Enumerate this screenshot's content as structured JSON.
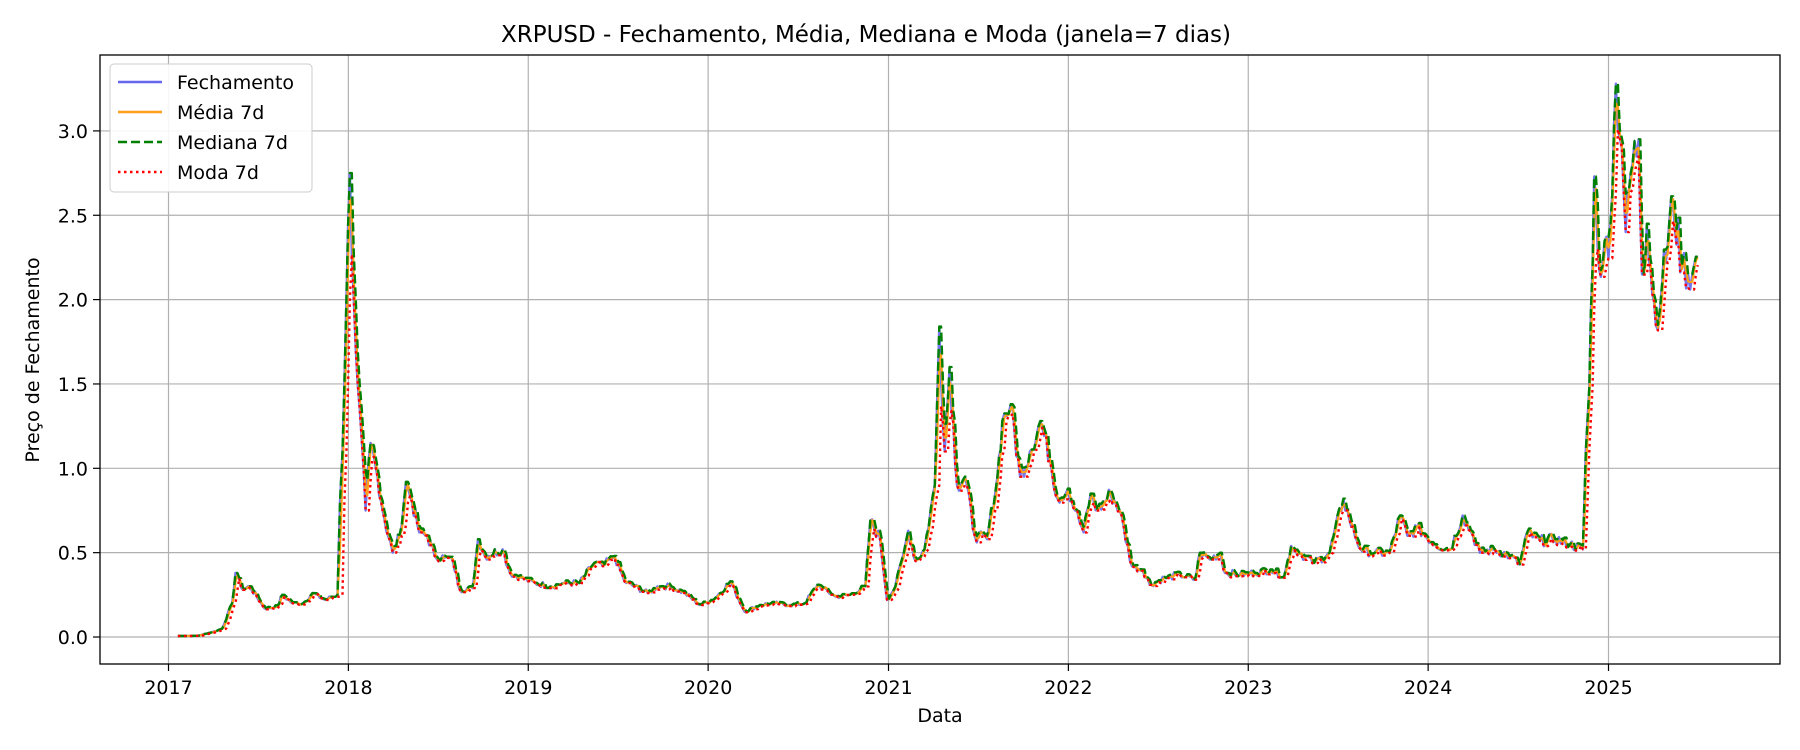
{
  "chart_data": {
    "type": "line",
    "title": "XRPUSD - Fechamento, Média, Mediana e Moda (janela=7 dias)",
    "xlabel": "Data",
    "ylabel": "Preço de Fechamento",
    "xlim": [
      "2016-08-15",
      "2025-12-15"
    ],
    "ylim": [
      -0.16,
      3.45
    ],
    "x_ticks": [
      "2017-01-01",
      "2018-01-01",
      "2019-01-01",
      "2020-01-01",
      "2021-01-01",
      "2022-01-01",
      "2023-01-01",
      "2024-01-01",
      "2025-01-01"
    ],
    "x_tick_labels": [
      "2017",
      "2018",
      "2019",
      "2020",
      "2021",
      "2022",
      "2023",
      "2024",
      "2025"
    ],
    "y_ticks": [
      0.0,
      0.5,
      1.0,
      1.5,
      2.0,
      2.5,
      3.0
    ],
    "y_tick_labels": [
      "0.0",
      "0.5",
      "1.0",
      "1.5",
      "2.0",
      "2.5",
      "3.0"
    ],
    "grid": true,
    "legend_position": "top-left",
    "series": [
      {
        "name": "Fechamento",
        "color": "#6666ee",
        "style": "solid"
      },
      {
        "name": "Média 7d",
        "color": "#ff9f1a",
        "style": "solid"
      },
      {
        "name": "Mediana 7d",
        "color": "#008000",
        "style": "dashed"
      },
      {
        "name": "Moda 7d",
        "color": "#ff0000",
        "style": "dotted"
      }
    ],
    "close_points": [
      [
        "2017-01-20",
        0.006
      ],
      [
        "2017-03-01",
        0.007
      ],
      [
        "2017-04-01",
        0.03
      ],
      [
        "2017-04-20",
        0.05
      ],
      [
        "2017-05-10",
        0.2
      ],
      [
        "2017-05-17",
        0.38
      ],
      [
        "2017-06-01",
        0.28
      ],
      [
        "2017-06-15",
        0.3
      ],
      [
        "2017-07-15",
        0.17
      ],
      [
        "2017-08-10",
        0.18
      ],
      [
        "2017-08-20",
        0.25
      ],
      [
        "2017-09-10",
        0.2
      ],
      [
        "2017-10-01",
        0.2
      ],
      [
        "2017-10-20",
        0.26
      ],
      [
        "2017-11-15",
        0.22
      ],
      [
        "2017-12-10",
        0.25
      ],
      [
        "2017-12-15",
        0.8
      ],
      [
        "2017-12-20",
        1.1
      ],
      [
        "2017-12-28",
        2.0
      ],
      [
        "2018-01-04",
        2.75
      ],
      [
        "2018-01-12",
        2.0
      ],
      [
        "2018-01-20",
        1.5
      ],
      [
        "2018-02-05",
        0.75
      ],
      [
        "2018-02-15",
        1.15
      ],
      [
        "2018-03-01",
        0.95
      ],
      [
        "2018-03-15",
        0.7
      ],
      [
        "2018-04-01",
        0.5
      ],
      [
        "2018-04-15",
        0.6
      ],
      [
        "2018-04-28",
        0.92
      ],
      [
        "2018-05-10",
        0.8
      ],
      [
        "2018-05-25",
        0.62
      ],
      [
        "2018-06-10",
        0.6
      ],
      [
        "2018-06-25",
        0.48
      ],
      [
        "2018-07-15",
        0.47
      ],
      [
        "2018-08-01",
        0.45
      ],
      [
        "2018-08-15",
        0.28
      ],
      [
        "2018-09-10",
        0.29
      ],
      [
        "2018-09-21",
        0.58
      ],
      [
        "2018-10-05",
        0.48
      ],
      [
        "2018-11-10",
        0.52
      ],
      [
        "2018-11-25",
        0.38
      ],
      [
        "2018-12-20",
        0.35
      ],
      [
        "2019-01-15",
        0.32
      ],
      [
        "2019-02-15",
        0.3
      ],
      [
        "2019-03-15",
        0.32
      ],
      [
        "2019-04-15",
        0.32
      ],
      [
        "2019-05-15",
        0.44
      ],
      [
        "2019-06-01",
        0.42
      ],
      [
        "2019-06-25",
        0.48
      ],
      [
        "2019-07-15",
        0.33
      ],
      [
        "2019-09-01",
        0.26
      ],
      [
        "2019-09-20",
        0.3
      ],
      [
        "2019-10-15",
        0.3
      ],
      [
        "2019-11-15",
        0.26
      ],
      [
        "2019-12-15",
        0.19
      ],
      [
        "2020-01-15",
        0.23
      ],
      [
        "2020-02-15",
        0.33
      ],
      [
        "2020-03-15",
        0.15
      ],
      [
        "2020-04-15",
        0.19
      ],
      [
        "2020-05-15",
        0.2
      ],
      [
        "2020-06-15",
        0.19
      ],
      [
        "2020-07-15",
        0.2
      ],
      [
        "2020-08-10",
        0.31
      ],
      [
        "2020-09-15",
        0.24
      ],
      [
        "2020-10-15",
        0.25
      ],
      [
        "2020-11-15",
        0.3
      ],
      [
        "2020-11-25",
        0.69
      ],
      [
        "2020-12-15",
        0.58
      ],
      [
        "2020-12-29",
        0.22
      ],
      [
        "2021-01-15",
        0.3
      ],
      [
        "2021-02-01",
        0.5
      ],
      [
        "2021-02-10",
        0.63
      ],
      [
        "2021-02-25",
        0.45
      ],
      [
        "2021-03-15",
        0.52
      ],
      [
        "2021-04-05",
        0.9
      ],
      [
        "2021-04-14",
        1.84
      ],
      [
        "2021-04-25",
        1.1
      ],
      [
        "2021-05-05",
        1.6
      ],
      [
        "2021-05-20",
        0.9
      ],
      [
        "2021-06-05",
        0.95
      ],
      [
        "2021-06-25",
        0.6
      ],
      [
        "2021-07-20",
        0.58
      ],
      [
        "2021-08-10",
        0.95
      ],
      [
        "2021-08-20",
        1.28
      ],
      [
        "2021-09-06",
        1.38
      ],
      [
        "2021-09-25",
        0.95
      ],
      [
        "2021-10-15",
        1.1
      ],
      [
        "2021-11-05",
        1.28
      ],
      [
        "2021-11-25",
        1.05
      ],
      [
        "2021-12-10",
        0.82
      ],
      [
        "2021-12-31",
        0.88
      ],
      [
        "2022-01-15",
        0.75
      ],
      [
        "2022-02-01",
        0.62
      ],
      [
        "2022-02-15",
        0.85
      ],
      [
        "2022-03-01",
        0.75
      ],
      [
        "2022-03-28",
        0.85
      ],
      [
        "2022-04-15",
        0.75
      ],
      [
        "2022-05-10",
        0.42
      ],
      [
        "2022-06-01",
        0.4
      ],
      [
        "2022-06-15",
        0.31
      ],
      [
        "2022-07-15",
        0.35
      ],
      [
        "2022-08-15",
        0.37
      ],
      [
        "2022-09-15",
        0.34
      ],
      [
        "2022-09-25",
        0.5
      ],
      [
        "2022-10-15",
        0.46
      ],
      [
        "2022-11-05",
        0.5
      ],
      [
        "2022-11-15",
        0.38
      ],
      [
        "2022-12-15",
        0.37
      ],
      [
        "2023-01-15",
        0.38
      ],
      [
        "2023-02-15",
        0.4
      ],
      [
        "2023-03-15",
        0.36
      ],
      [
        "2023-03-29",
        0.54
      ],
      [
        "2023-04-15",
        0.5
      ],
      [
        "2023-05-15",
        0.44
      ],
      [
        "2023-06-15",
        0.5
      ],
      [
        "2023-07-13",
        0.82
      ],
      [
        "2023-07-25",
        0.7
      ],
      [
        "2023-08-17",
        0.52
      ],
      [
        "2023-09-15",
        0.5
      ],
      [
        "2023-10-15",
        0.5
      ],
      [
        "2023-11-05",
        0.72
      ],
      [
        "2023-11-20",
        0.6
      ],
      [
        "2023-12-10",
        0.65
      ],
      [
        "2024-01-15",
        0.55
      ],
      [
        "2024-02-15",
        0.52
      ],
      [
        "2024-03-11",
        0.72
      ],
      [
        "2024-04-01",
        0.6
      ],
      [
        "2024-04-15",
        0.5
      ],
      [
        "2024-05-15",
        0.52
      ],
      [
        "2024-06-15",
        0.48
      ],
      [
        "2024-07-05",
        0.43
      ],
      [
        "2024-07-20",
        0.62
      ],
      [
        "2024-08-15",
        0.57
      ],
      [
        "2024-09-15",
        0.58
      ],
      [
        "2024-10-15",
        0.55
      ],
      [
        "2024-11-10",
        0.52
      ],
      [
        "2024-11-16",
        1.1
      ],
      [
        "2024-11-23",
        1.48
      ],
      [
        "2024-12-03",
        2.73
      ],
      [
        "2024-12-10",
        2.3
      ],
      [
        "2024-12-20",
        2.2
      ],
      [
        "2025-01-05",
        2.45
      ],
      [
        "2025-01-16",
        3.28
      ],
      [
        "2025-01-28",
        2.9
      ],
      [
        "2025-02-05",
        2.4
      ],
      [
        "2025-02-15",
        2.75
      ],
      [
        "2025-03-03",
        2.95
      ],
      [
        "2025-03-10",
        2.15
      ],
      [
        "2025-03-20",
        2.45
      ],
      [
        "2025-04-07",
        1.85
      ],
      [
        "2025-04-20",
        2.1
      ],
      [
        "2025-05-12",
        2.58
      ],
      [
        "2025-05-30",
        2.2
      ],
      [
        "2025-06-20",
        2.15
      ],
      [
        "2025-07-01",
        2.25
      ]
    ]
  }
}
